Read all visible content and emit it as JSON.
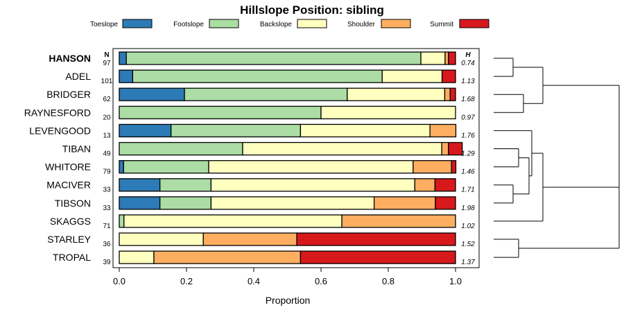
{
  "chart_data": {
    "type": "bar",
    "orientation": "horizontal",
    "stacked": true,
    "title": "Hillslope Position: sibling",
    "xlabel": "Proportion",
    "ylabel": "",
    "xlim": [
      0,
      1
    ],
    "x_ticks": [
      "0.0",
      "0.2",
      "0.4",
      "0.6",
      "0.8",
      "1.0"
    ],
    "n_header": "N",
    "h_header": "H",
    "legend": [
      {
        "name": "Toeslope",
        "color": "#2c7bb6"
      },
      {
        "name": "Footslope",
        "color": "#abdda4"
      },
      {
        "name": "Backslope",
        "color": "#ffffbf"
      },
      {
        "name": "Shoulder",
        "color": "#fdae61"
      },
      {
        "name": "Summit",
        "color": "#d7191c"
      }
    ],
    "categories": [
      "HANSON",
      "ADEL",
      "BRIDGER",
      "RAYNESFORD",
      "LEVENGOOD",
      "TIBAN",
      "WHITORE",
      "MACIVER",
      "TIBSON",
      "SKAGGS",
      "STARLEY",
      "TROPAL"
    ],
    "highlight": "HANSON",
    "n": [
      "97",
      "101",
      "62",
      "20",
      "13",
      "49",
      "79",
      "33",
      "33",
      "71",
      "36",
      "39"
    ],
    "h": [
      "0.74",
      "1.13",
      "1.68",
      "0.97",
      "1.76",
      "1.29",
      "1.46",
      "1.71",
      "1.98",
      "1.02",
      "1.52",
      "1.37"
    ],
    "series": [
      {
        "name": "Toeslope",
        "values": [
          0.021,
          0.04,
          0.194,
          0,
          0.154,
          0,
          0.013,
          0.121,
          0.121,
          0,
          0,
          0
        ]
      },
      {
        "name": "Footslope",
        "values": [
          0.876,
          0.742,
          0.484,
          0.6,
          0.385,
          0.367,
          0.253,
          0.152,
          0.152,
          0.014,
          0,
          0
        ]
      },
      {
        "name": "Backslope",
        "values": [
          0.072,
          0.178,
          0.29,
          0.4,
          0.385,
          0.592,
          0.608,
          0.606,
          0.485,
          0.648,
          0.25,
          0.103
        ]
      },
      {
        "name": "Shoulder",
        "values": [
          0.01,
          0,
          0.016,
          0,
          0.077,
          0.02,
          0.114,
          0.06,
          0.182,
          0.338,
          0.278,
          0.436
        ]
      },
      {
        "name": "Summit",
        "values": [
          0.021,
          0.04,
          0.016,
          0,
          0,
          0.041,
          0.013,
          0.061,
          0.06,
          0,
          0.472,
          0.461
        ]
      }
    ],
    "dendrogram": {
      "method": "hierarchical clustering",
      "groups": [
        [
          "HANSON",
          "ADEL"
        ],
        [
          "BRIDGER",
          "RAYNESFORD"
        ],
        [
          "LEVENGOOD",
          "TIBAN",
          "WHITORE",
          "MACIVER",
          "TIBSON"
        ],
        [
          "SKAGGS"
        ],
        [
          "STARLEY",
          "TROPAL"
        ]
      ]
    }
  }
}
